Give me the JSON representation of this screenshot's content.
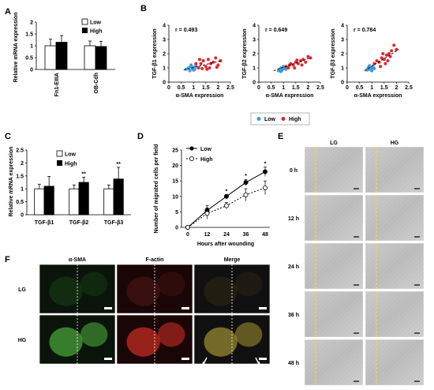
{
  "panels": {
    "A": "A",
    "B": "B",
    "C": "C",
    "D": "D",
    "E": "E",
    "F": "F"
  },
  "legend_low": "Low",
  "legend_high": "High",
  "chart_data": [
    {
      "id": "A",
      "type": "bar",
      "categories": [
        "Fn1-EIIIA",
        "OB-Cdh"
      ],
      "series": [
        {
          "name": "Low",
          "values": [
            1.0,
            1.0
          ],
          "errors": [
            0.28,
            0.2
          ]
        },
        {
          "name": "High",
          "values": [
            1.15,
            0.97
          ],
          "errors": [
            0.28,
            0.22
          ]
        }
      ],
      "ylabel": "Relative mRNA expression",
      "yticks": [
        "0",
        "0.5",
        "1",
        "1.5",
        "2"
      ],
      "ylim": [
        0,
        2
      ]
    },
    {
      "id": "B1",
      "type": "scatter",
      "r_label": "r = 0.493",
      "xlabel": "α-SMA expression",
      "ylabel": "TGF-β1 expression",
      "xticks": [
        "0",
        "0.5",
        "1",
        "1.5",
        "2",
        "2.5"
      ],
      "yticks": [
        "0",
        "1",
        "2",
        "3",
        "4"
      ],
      "xlim": [
        0,
        2.5
      ],
      "ylim": [
        0,
        4
      ],
      "low": [
        [
          0.7,
          0.9
        ],
        [
          0.8,
          1.0
        ],
        [
          0.85,
          0.8
        ],
        [
          0.9,
          1.1
        ],
        [
          0.95,
          0.95
        ],
        [
          1.0,
          1.05
        ],
        [
          1.05,
          0.9
        ],
        [
          1.1,
          1.15
        ],
        [
          0.9,
          1.2
        ],
        [
          1.0,
          0.85
        ]
      ],
      "high": [
        [
          1.1,
          1.3
        ],
        [
          1.2,
          1.0
        ],
        [
          1.3,
          1.3
        ],
        [
          1.4,
          1.5
        ],
        [
          1.5,
          1.1
        ],
        [
          1.6,
          1.6
        ],
        [
          1.7,
          1.3
        ],
        [
          1.8,
          1.4
        ],
        [
          1.9,
          1.7
        ],
        [
          2.0,
          1.2
        ],
        [
          2.1,
          1.5
        ],
        [
          1.55,
          0.9
        ],
        [
          1.25,
          1.6
        ],
        [
          1.35,
          0.95
        ],
        [
          1.65,
          1.0
        ],
        [
          1.95,
          1.05
        ]
      ],
      "fit": [
        [
          0.6,
          0.85
        ],
        [
          2.1,
          1.5
        ]
      ]
    },
    {
      "id": "B2",
      "type": "scatter",
      "r_label": "r = 0.649",
      "xlabel": "α-SMA expression",
      "ylabel": "TGF-β2 expression",
      "xticks": [
        "0",
        "0.5",
        "1",
        "1.5",
        "2",
        "2.5"
      ],
      "yticks": [
        "0",
        "1",
        "2",
        "3",
        "4"
      ],
      "xlim": [
        0,
        2.5
      ],
      "ylim": [
        0,
        4
      ],
      "low": [
        [
          0.8,
          0.8
        ],
        [
          0.85,
          0.9
        ],
        [
          0.9,
          1.0
        ],
        [
          0.95,
          0.85
        ],
        [
          1.0,
          0.95
        ],
        [
          1.05,
          1.0
        ],
        [
          1.1,
          0.9
        ],
        [
          0.9,
          0.75
        ],
        [
          1.0,
          1.1
        ],
        [
          1.15,
          1.05
        ]
      ],
      "high": [
        [
          1.1,
          1.1
        ],
        [
          1.2,
          1.0
        ],
        [
          1.3,
          1.3
        ],
        [
          1.4,
          1.2
        ],
        [
          1.5,
          1.4
        ],
        [
          1.6,
          1.3
        ],
        [
          1.7,
          1.5
        ],
        [
          1.8,
          1.6
        ],
        [
          1.9,
          1.4
        ],
        [
          2.0,
          1.8
        ],
        [
          2.1,
          1.7
        ],
        [
          1.45,
          1.0
        ],
        [
          1.25,
          1.2
        ],
        [
          1.75,
          1.2
        ],
        [
          1.55,
          1.55
        ]
      ],
      "fit": [
        [
          0.6,
          0.8
        ],
        [
          2.1,
          1.7
        ]
      ]
    },
    {
      "id": "B3",
      "type": "scatter",
      "r_label": "r = 0.784",
      "xlabel": "α-SMA expression",
      "ylabel": "TGF-β3 expression",
      "xticks": [
        "0",
        "0.5",
        "1",
        "1.5",
        "2",
        "2.5"
      ],
      "yticks": [
        "0",
        "1",
        "2",
        "3",
        "4"
      ],
      "xlim": [
        0,
        2.5
      ],
      "ylim": [
        0,
        4
      ],
      "low": [
        [
          0.8,
          0.85
        ],
        [
          0.85,
          1.0
        ],
        [
          0.9,
          0.9
        ],
        [
          0.95,
          1.05
        ],
        [
          1.0,
          1.0
        ],
        [
          1.05,
          1.1
        ],
        [
          1.1,
          0.95
        ],
        [
          0.9,
          1.15
        ],
        [
          1.0,
          0.8
        ]
      ],
      "high": [
        [
          1.1,
          1.3
        ],
        [
          1.2,
          1.5
        ],
        [
          1.3,
          1.4
        ],
        [
          1.4,
          1.7
        ],
        [
          1.5,
          1.6
        ],
        [
          1.6,
          1.9
        ],
        [
          1.7,
          2.0
        ],
        [
          1.8,
          2.2
        ],
        [
          1.9,
          2.6
        ],
        [
          2.0,
          2.3
        ],
        [
          1.35,
          1.1
        ],
        [
          1.55,
          1.3
        ],
        [
          1.45,
          2.0
        ],
        [
          1.75,
          1.8
        ],
        [
          1.65,
          1.5
        ]
      ],
      "fit": [
        [
          0.7,
          0.8
        ],
        [
          2.1,
          2.3
        ]
      ]
    },
    {
      "id": "C",
      "type": "bar",
      "categories": [
        "TGF-β1",
        "TGF-β2",
        "TGF-β3"
      ],
      "series": [
        {
          "name": "Low",
          "values": [
            1.0,
            1.0,
            1.0
          ],
          "errors": [
            0.18,
            0.15,
            0.15
          ]
        },
        {
          "name": "High",
          "values": [
            1.1,
            1.25,
            1.38
          ],
          "errors": [
            0.38,
            0.2,
            0.45
          ]
        }
      ],
      "annotations": [
        "",
        "**",
        "**"
      ],
      "ylabel": "Relative mRNA expression",
      "yticks": [
        "0",
        "0.5",
        "1",
        "1.5",
        "2",
        "2.5"
      ],
      "ylim": [
        0,
        2.5
      ]
    },
    {
      "id": "D",
      "type": "line",
      "x": [
        0,
        12,
        24,
        36,
        48
      ],
      "xticks": [
        "0",
        "12",
        "24",
        "36",
        "48"
      ],
      "series": [
        {
          "name": "Low",
          "values": [
            0,
            5.5,
            10,
            14.5,
            18
          ],
          "errors": [
            0,
            1.5,
            0.6,
            1.0,
            1.5
          ]
        },
        {
          "name": "High",
          "values": [
            0,
            4.5,
            7,
            10.5,
            12.8
          ],
          "errors": [
            0,
            1.8,
            1.0,
            2.0,
            2.2
          ]
        }
      ],
      "annotations": [
        "",
        "",
        "*",
        "*",
        "*"
      ],
      "xlabel": "Hours after wounding",
      "ylabel": "Number of migrated cells per field",
      "yticks": [
        "0",
        "5",
        "10",
        "15",
        "20",
        "25"
      ],
      "ylim": [
        0,
        25
      ]
    }
  ],
  "E": {
    "cols": [
      "LG",
      "HG"
    ],
    "rows": [
      "0 h",
      "12 h",
      "24 h",
      "36 h",
      "48 h"
    ]
  },
  "F": {
    "cols": [
      "α-SMA",
      "F-actin",
      "Merge"
    ],
    "rows": [
      "LG",
      "HG"
    ]
  },
  "colors": {
    "low_pt": "#3d9bd8",
    "high_pt": "#e0262f",
    "sma": "#2fbf4a",
    "factin": "#e02a2a",
    "guide": "#e8e22a"
  }
}
